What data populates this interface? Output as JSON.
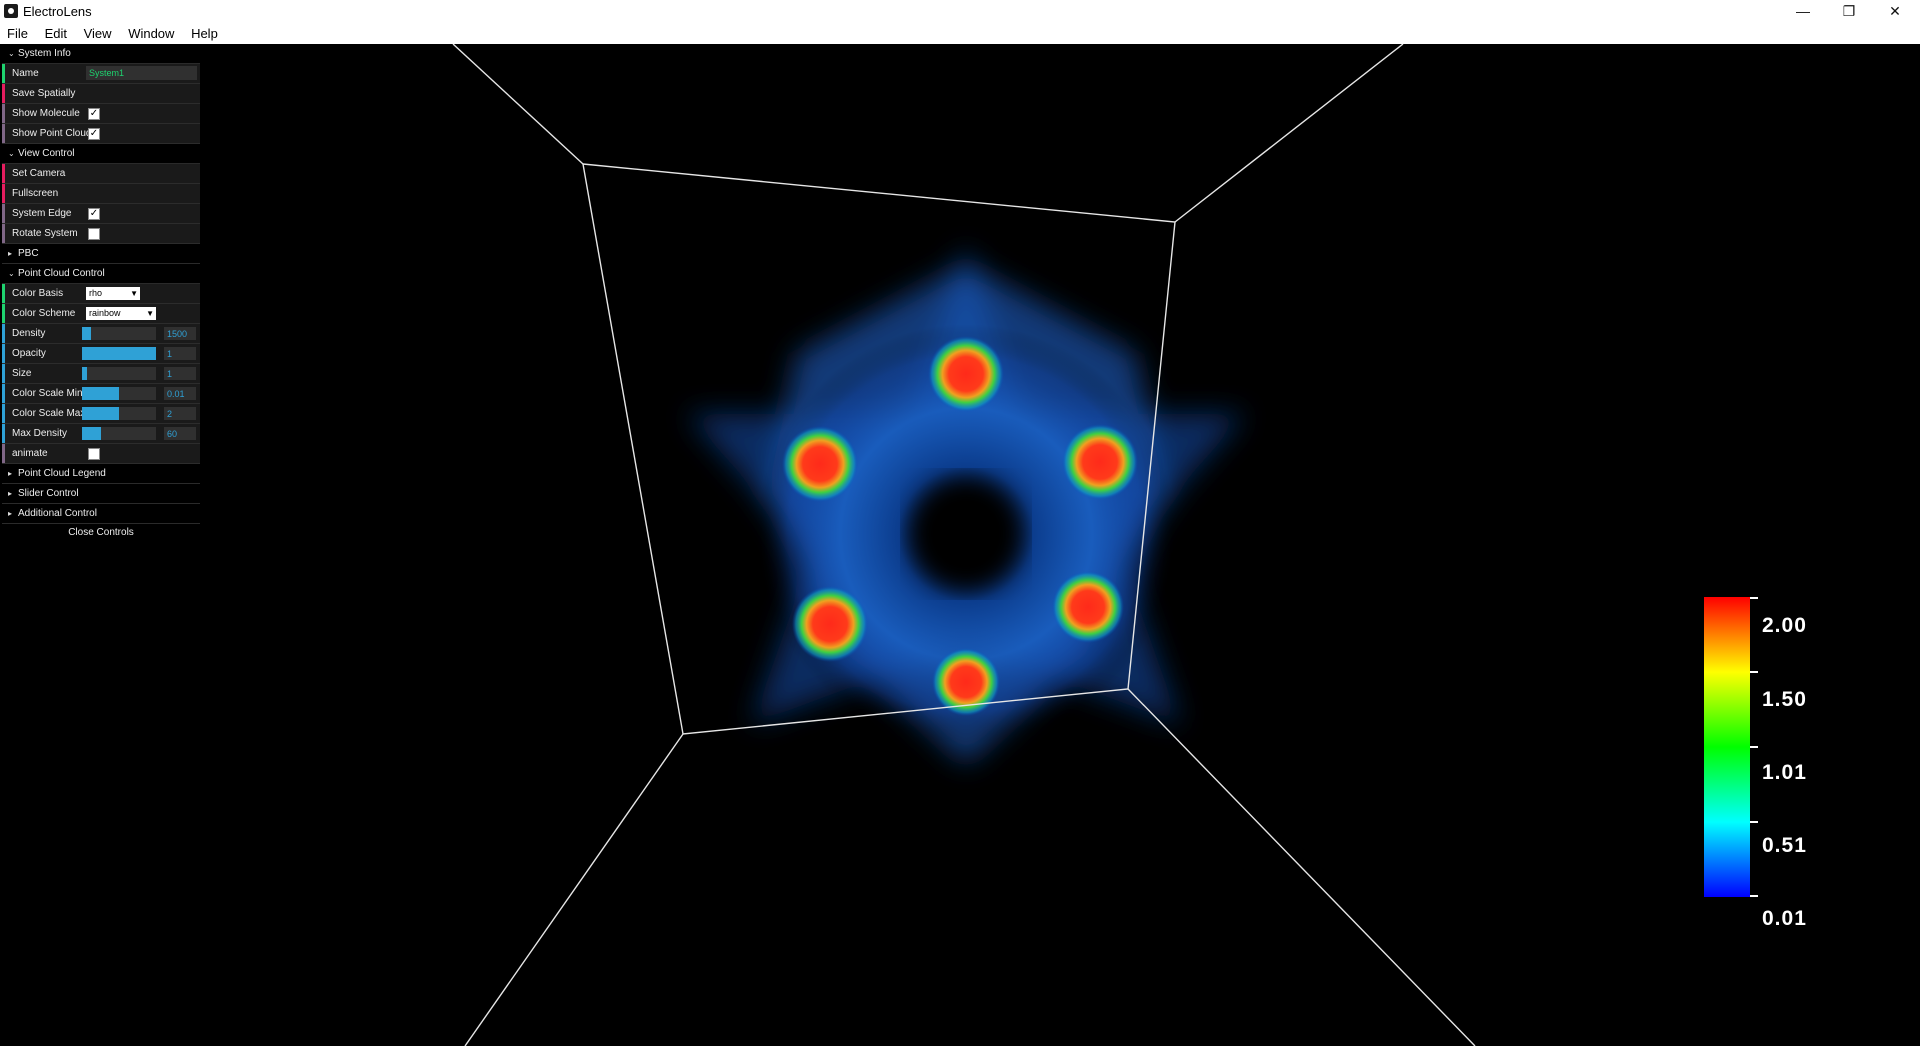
{
  "window": {
    "title": "ElectroLens",
    "minimize": "—",
    "restore": "❐",
    "close": "✕"
  },
  "menu": [
    "File",
    "Edit",
    "View",
    "Window",
    "Help"
  ],
  "panel": {
    "system_info": {
      "header": "System Info",
      "name_label": "Name",
      "name_value": "System1",
      "save_spatially": "Save Spatially",
      "show_molecule": "Show Molecule",
      "show_point_cloud": "Show Point Cloud"
    },
    "view_control": {
      "header": "View Control",
      "set_camera": "Set Camera",
      "fullscreen": "Fullscreen",
      "system_edge": "System Edge",
      "rotate_system": "Rotate System"
    },
    "pbc": {
      "header": "PBC"
    },
    "point_cloud_control": {
      "header": "Point Cloud Control",
      "color_basis_label": "Color Basis",
      "color_basis_value": "rho",
      "color_scheme_label": "Color Scheme",
      "color_scheme_value": "rainbow",
      "density_label": "Density",
      "density_value": "1500",
      "density_fraction": 0.12,
      "opacity_label": "Opacity",
      "opacity_value": "1",
      "opacity_fraction": 1.0,
      "size_label": "Size",
      "size_value": "1",
      "size_fraction": 0.07,
      "cmin_label": "Color Scale Min",
      "cmin_value": "0.01",
      "cmin_fraction": 0.5,
      "cmax_label": "Color Scale Max",
      "cmax_value": "2",
      "cmax_fraction": 0.5,
      "maxdensity_label": "Max Density",
      "maxdensity_value": "60",
      "maxdensity_fraction": 0.25,
      "animate_label": "animate"
    },
    "point_cloud_legend": {
      "header": "Point Cloud Legend"
    },
    "slider_control": {
      "header": "Slider Control"
    },
    "additional_control": {
      "header": "Additional Control"
    },
    "close_controls": "Close Controls"
  },
  "legend": {
    "labels": [
      "2.00",
      "1.50",
      "1.01",
      "0.51",
      "0.01"
    ]
  },
  "colors": {
    "accent": "#2fa1d6",
    "green_stripe": "#1ed36f",
    "red_stripe": "#e61d5f",
    "blue_stripe": "#2fa1d6"
  }
}
